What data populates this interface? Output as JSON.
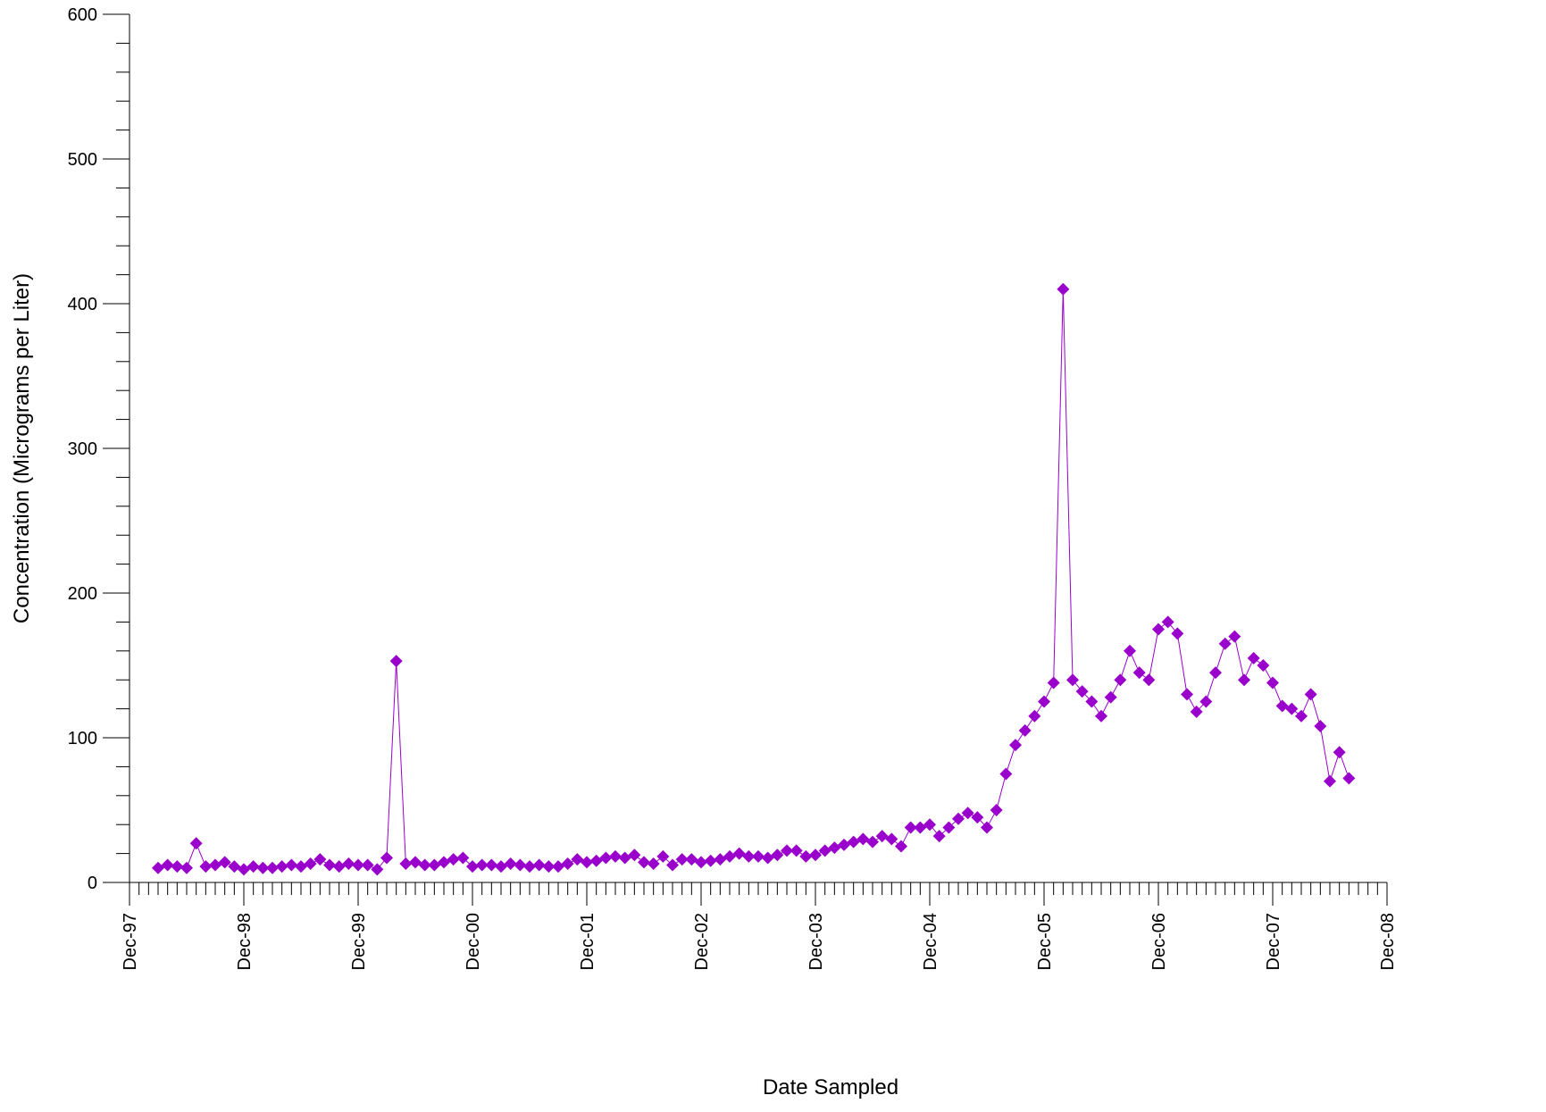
{
  "chart_data": {
    "type": "line",
    "x_label": "Date Sampled",
    "y_label": "Concentration (Micrograms per Liter)",
    "x": [
      "Mar-98",
      "Apr-98",
      "May-98",
      "Jun-98",
      "Jul-98",
      "Aug-98",
      "Sep-98",
      "Oct-98",
      "Nov-98",
      "Dec-98",
      "Jan-99",
      "Feb-99",
      "Mar-99",
      "Apr-99",
      "May-99",
      "Jun-99",
      "Jul-99",
      "Aug-99",
      "Sep-99",
      "Oct-99",
      "Nov-99",
      "Dec-99",
      "Jan-00",
      "Feb-00",
      "Mar-00",
      "Apr-00",
      "May-00",
      "Jun-00",
      "Jul-00",
      "Aug-00",
      "Sep-00",
      "Oct-00",
      "Nov-00",
      "Dec-00",
      "Jan-01",
      "Feb-01",
      "Mar-01",
      "Apr-01",
      "May-01",
      "Jun-01",
      "Jul-01",
      "Aug-01",
      "Sep-01",
      "Oct-01",
      "Nov-01",
      "Dec-01",
      "Jan-02",
      "Feb-02",
      "Mar-02",
      "Apr-02",
      "May-02",
      "Jun-02",
      "Jul-02",
      "Aug-02",
      "Sep-02",
      "Oct-02",
      "Nov-02",
      "Dec-02",
      "Jan-03",
      "Feb-03",
      "Mar-03",
      "Apr-03",
      "May-03",
      "Jun-03",
      "Jul-03",
      "Aug-03",
      "Sep-03",
      "Oct-03",
      "Nov-03",
      "Dec-03",
      "Jan-04",
      "Feb-04",
      "Mar-04",
      "Apr-04",
      "May-04",
      "Jun-04",
      "Jul-04",
      "Aug-04",
      "Sep-04",
      "Oct-04",
      "Nov-04",
      "Dec-04",
      "Jan-05",
      "Feb-05",
      "Mar-05",
      "Apr-05",
      "May-05",
      "Jun-05",
      "Jul-05",
      "Aug-05",
      "Sep-05",
      "Oct-05",
      "Nov-05",
      "Dec-05",
      "Jan-06",
      "Feb-06",
      "Mar-06",
      "Apr-06",
      "May-06",
      "Jun-06",
      "Jul-06",
      "Aug-06",
      "Sep-06",
      "Oct-06",
      "Nov-06",
      "Dec-06",
      "Jan-07",
      "Feb-07",
      "Mar-07",
      "Apr-07",
      "May-07",
      "Jun-07",
      "Jul-07",
      "Aug-07",
      "Sep-07",
      "Oct-07",
      "Nov-07",
      "Dec-07",
      "Jan-08",
      "Feb-08",
      "Mar-08",
      "Apr-08",
      "May-08",
      "Jun-08",
      "Jul-08",
      "Aug-08"
    ],
    "values": [
      10,
      12,
      11,
      10,
      27,
      11,
      12,
      14,
      11,
      9,
      11,
      10,
      10,
      11,
      12,
      11,
      13,
      16,
      12,
      11,
      13,
      12,
      12,
      9,
      17,
      153,
      13,
      14,
      12,
      12,
      14,
      16,
      17,
      11,
      12,
      12,
      11,
      13,
      12,
      11,
      12,
      11,
      11,
      13,
      16,
      14,
      15,
      17,
      18,
      17,
      19,
      14,
      13,
      18,
      12,
      16,
      16,
      14,
      15,
      16,
      18,
      20,
      18,
      18,
      17,
      19,
      22,
      22,
      18,
      19,
      22,
      24,
      26,
      28,
      30,
      28,
      32,
      30,
      25,
      38,
      38,
      40,
      32,
      38,
      44,
      48,
      45,
      38,
      50,
      75,
      95,
      105,
      115,
      125,
      138,
      410,
      140,
      132,
      125,
      115,
      128,
      140,
      160,
      145,
      140,
      175,
      180,
      172,
      130,
      118,
      125,
      145,
      165,
      170,
      140,
      155,
      150,
      138,
      122,
      120,
      115,
      130,
      108,
      70,
      90,
      72
    ],
    "color": "#9900cc",
    "xlim": [
      "Dec-97",
      "Dec-08"
    ],
    "xticks": [
      "Dec-97",
      "Dec-98",
      "Dec-99",
      "Dec-00",
      "Dec-01",
      "Dec-02",
      "Dec-03",
      "Dec-04",
      "Dec-05",
      "Dec-06",
      "Dec-07",
      "Dec-08"
    ],
    "ylim": [
      0,
      600
    ],
    "yticks": [
      0,
      100,
      200,
      300,
      400,
      500,
      600
    ]
  }
}
